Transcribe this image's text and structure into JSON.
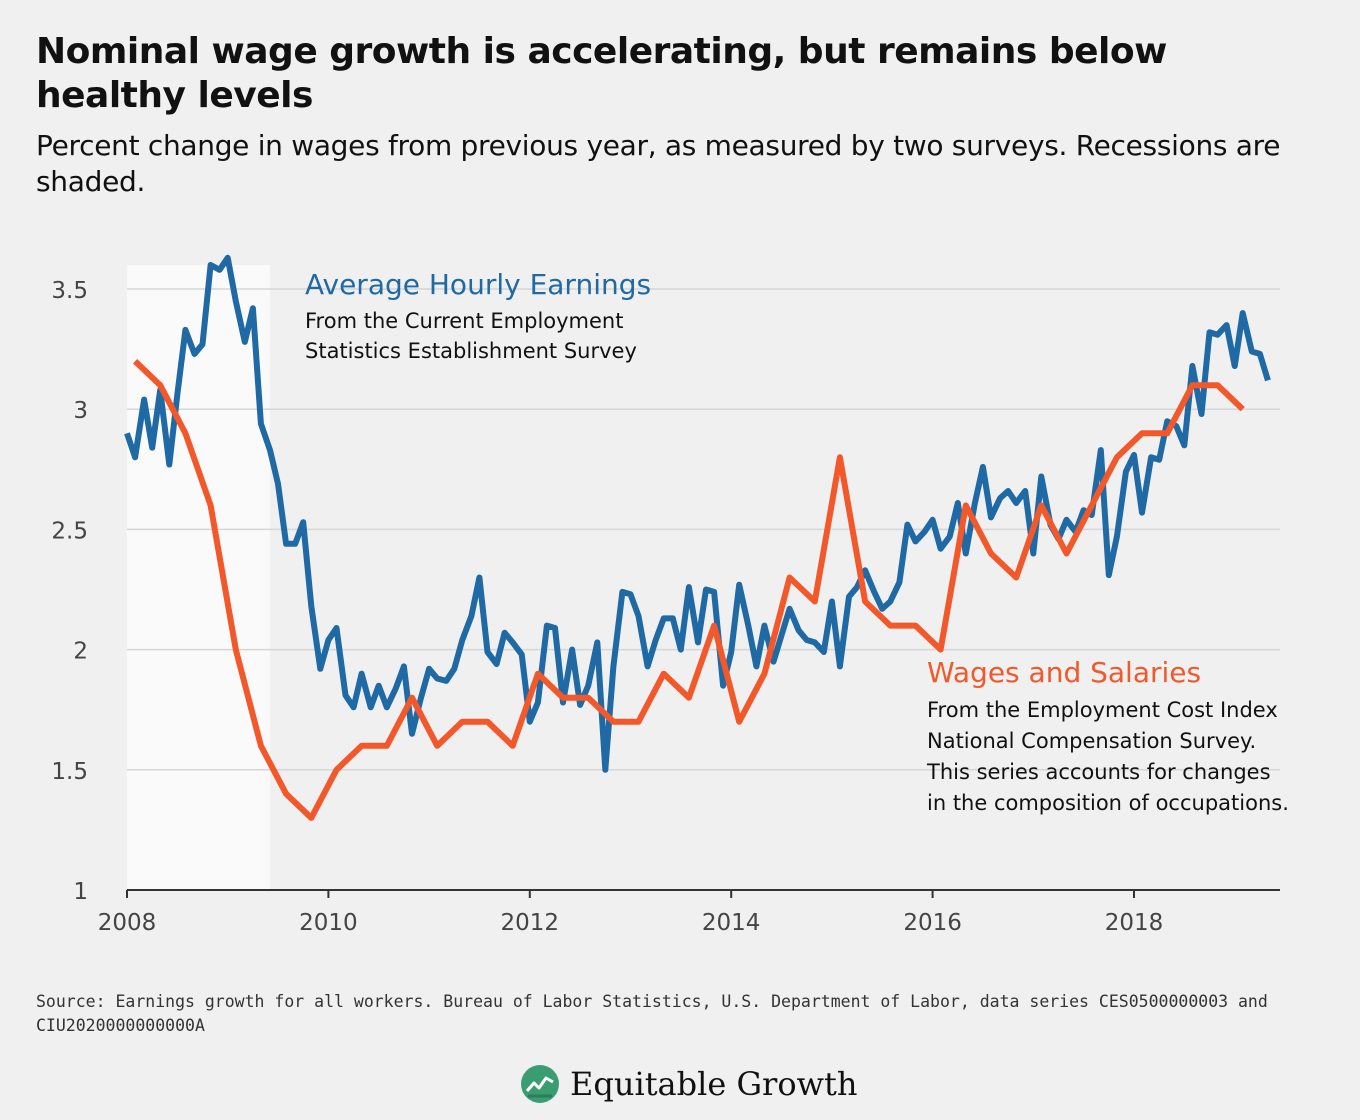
{
  "header": {
    "title": "Nominal wage growth is accelerating, but remains below healthy levels",
    "subtitle": "Percent change in wages from previous year, as measured by two surveys. Recessions are shaded."
  },
  "footer": {
    "source": "Source: Earnings growth for all workers. Bureau of Labor Statistics, U.S. Department of Labor, data series CES0500000003 and CIU2020000000000A",
    "brand": "Equitable Growth",
    "brand_icon": "chart-leaf-icon"
  },
  "colors": {
    "ahe": "#1f6aa5",
    "wages": "#f2582a",
    "grid": "#d6d6d6",
    "axis": "#333333",
    "shade": "#fafafa",
    "brand_green": "#3a9d72"
  },
  "chart_data": {
    "type": "line",
    "x_axis": {
      "ticks": [
        2008,
        2010,
        2012,
        2014,
        2016,
        2018
      ],
      "range": [
        2008,
        2019.45
      ]
    },
    "y_axis": {
      "ticks": [
        "1",
        "1.5",
        "2",
        "2.5",
        "3",
        "3.5"
      ],
      "range": [
        1,
        3.6
      ]
    },
    "grid": true,
    "recession_shading": [
      [
        2008.0,
        2009.42
      ]
    ],
    "series": [
      {
        "name": "Average Hourly Earnings",
        "annotation_title": "Average Hourly Earnings",
        "annotation_lines": [
          "From the Current Employment",
          "Statistics Establishment Survey"
        ],
        "points": [
          [
            2008.0,
            2.9
          ],
          [
            2008.08,
            2.8
          ],
          [
            2008.17,
            3.04
          ],
          [
            2008.25,
            2.84
          ],
          [
            2008.33,
            3.08
          ],
          [
            2008.42,
            2.77
          ],
          [
            2008.5,
            3.06
          ],
          [
            2008.58,
            3.33
          ],
          [
            2008.67,
            3.23
          ],
          [
            2008.75,
            3.27
          ],
          [
            2008.83,
            3.6
          ],
          [
            2008.92,
            3.58
          ],
          [
            2009.0,
            3.63
          ],
          [
            2009.08,
            3.45
          ],
          [
            2009.17,
            3.28
          ],
          [
            2009.25,
            3.42
          ],
          [
            2009.33,
            2.94
          ],
          [
            2009.42,
            2.83
          ],
          [
            2009.5,
            2.69
          ],
          [
            2009.58,
            2.44
          ],
          [
            2009.67,
            2.44
          ],
          [
            2009.75,
            2.53
          ],
          [
            2009.83,
            2.18
          ],
          [
            2009.92,
            1.92
          ],
          [
            2010.0,
            2.04
          ],
          [
            2010.08,
            2.09
          ],
          [
            2010.17,
            1.81
          ],
          [
            2010.25,
            1.76
          ],
          [
            2010.33,
            1.9
          ],
          [
            2010.42,
            1.76
          ],
          [
            2010.5,
            1.85
          ],
          [
            2010.58,
            1.76
          ],
          [
            2010.67,
            1.84
          ],
          [
            2010.75,
            1.93
          ],
          [
            2010.83,
            1.65
          ],
          [
            2010.92,
            1.8
          ],
          [
            2011.0,
            1.92
          ],
          [
            2011.08,
            1.88
          ],
          [
            2011.17,
            1.87
          ],
          [
            2011.25,
            1.92
          ],
          [
            2011.33,
            2.04
          ],
          [
            2011.42,
            2.14
          ],
          [
            2011.5,
            2.3
          ],
          [
            2011.58,
            1.99
          ],
          [
            2011.67,
            1.94
          ],
          [
            2011.75,
            2.07
          ],
          [
            2011.83,
            2.03
          ],
          [
            2011.92,
            1.98
          ],
          [
            2012.0,
            1.7
          ],
          [
            2012.08,
            1.78
          ],
          [
            2012.17,
            2.1
          ],
          [
            2012.25,
            2.09
          ],
          [
            2012.33,
            1.78
          ],
          [
            2012.42,
            2.0
          ],
          [
            2012.5,
            1.77
          ],
          [
            2012.58,
            1.85
          ],
          [
            2012.67,
            2.03
          ],
          [
            2012.75,
            1.5
          ],
          [
            2012.83,
            1.93
          ],
          [
            2012.92,
            2.24
          ],
          [
            2013.0,
            2.23
          ],
          [
            2013.08,
            2.14
          ],
          [
            2013.17,
            1.93
          ],
          [
            2013.25,
            2.04
          ],
          [
            2013.33,
            2.13
          ],
          [
            2013.42,
            2.13
          ],
          [
            2013.5,
            2.0
          ],
          [
            2013.58,
            2.26
          ],
          [
            2013.67,
            2.03
          ],
          [
            2013.75,
            2.25
          ],
          [
            2013.83,
            2.24
          ],
          [
            2013.92,
            1.85
          ],
          [
            2014.0,
            1.99
          ],
          [
            2014.08,
            2.27
          ],
          [
            2014.17,
            2.1
          ],
          [
            2014.25,
            1.93
          ],
          [
            2014.33,
            2.1
          ],
          [
            2014.42,
            1.95
          ],
          [
            2014.5,
            2.06
          ],
          [
            2014.58,
            2.17
          ],
          [
            2014.67,
            2.08
          ],
          [
            2014.75,
            2.04
          ],
          [
            2014.83,
            2.03
          ],
          [
            2014.92,
            1.99
          ],
          [
            2015.0,
            2.2
          ],
          [
            2015.08,
            1.93
          ],
          [
            2015.17,
            2.22
          ],
          [
            2015.25,
            2.26
          ],
          [
            2015.33,
            2.33
          ],
          [
            2015.42,
            2.24
          ],
          [
            2015.5,
            2.17
          ],
          [
            2015.58,
            2.2
          ],
          [
            2015.67,
            2.28
          ],
          [
            2015.75,
            2.52
          ],
          [
            2015.83,
            2.45
          ],
          [
            2015.92,
            2.49
          ],
          [
            2016.0,
            2.54
          ],
          [
            2016.08,
            2.42
          ],
          [
            2016.17,
            2.47
          ],
          [
            2016.25,
            2.61
          ],
          [
            2016.33,
            2.4
          ],
          [
            2016.42,
            2.61
          ],
          [
            2016.5,
            2.76
          ],
          [
            2016.58,
            2.55
          ],
          [
            2016.67,
            2.63
          ],
          [
            2016.75,
            2.66
          ],
          [
            2016.83,
            2.61
          ],
          [
            2016.92,
            2.66
          ],
          [
            2017.0,
            2.4
          ],
          [
            2017.08,
            2.72
          ],
          [
            2017.17,
            2.52
          ],
          [
            2017.25,
            2.46
          ],
          [
            2017.33,
            2.54
          ],
          [
            2017.42,
            2.49
          ],
          [
            2017.5,
            2.58
          ],
          [
            2017.58,
            2.56
          ],
          [
            2017.67,
            2.83
          ],
          [
            2017.75,
            2.31
          ],
          [
            2017.83,
            2.47
          ],
          [
            2017.92,
            2.74
          ],
          [
            2018.0,
            2.81
          ],
          [
            2018.08,
            2.57
          ],
          [
            2018.17,
            2.8
          ],
          [
            2018.25,
            2.79
          ],
          [
            2018.33,
            2.95
          ],
          [
            2018.42,
            2.93
          ],
          [
            2018.5,
            2.85
          ],
          [
            2018.58,
            3.18
          ],
          [
            2018.67,
            2.98
          ],
          [
            2018.75,
            3.32
          ],
          [
            2018.83,
            3.31
          ],
          [
            2018.92,
            3.35
          ],
          [
            2019.0,
            3.18
          ],
          [
            2019.08,
            3.4
          ],
          [
            2019.17,
            3.24
          ],
          [
            2019.25,
            3.23
          ],
          [
            2019.33,
            3.12
          ]
        ]
      },
      {
        "name": "Wages and Salaries",
        "annotation_title": "Wages and Salaries",
        "annotation_lines": [
          "From the Employment Cost Index",
          "National Compensation Survey.",
          "This series accounts for changes",
          "in the composition of occupations."
        ],
        "points": [
          [
            2008.08,
            3.2
          ],
          [
            2008.33,
            3.1
          ],
          [
            2008.58,
            2.9
          ],
          [
            2008.83,
            2.6
          ],
          [
            2009.08,
            2.0
          ],
          [
            2009.33,
            1.6
          ],
          [
            2009.58,
            1.4
          ],
          [
            2009.83,
            1.3
          ],
          [
            2010.08,
            1.5
          ],
          [
            2010.33,
            1.6
          ],
          [
            2010.58,
            1.6
          ],
          [
            2010.83,
            1.8
          ],
          [
            2011.08,
            1.6
          ],
          [
            2011.33,
            1.7
          ],
          [
            2011.58,
            1.7
          ],
          [
            2011.83,
            1.6
          ],
          [
            2012.08,
            1.9
          ],
          [
            2012.33,
            1.8
          ],
          [
            2012.58,
            1.8
          ],
          [
            2012.83,
            1.7
          ],
          [
            2013.08,
            1.7
          ],
          [
            2013.33,
            1.9
          ],
          [
            2013.58,
            1.8
          ],
          [
            2013.83,
            2.1
          ],
          [
            2014.08,
            1.7
          ],
          [
            2014.33,
            1.9
          ],
          [
            2014.58,
            2.3
          ],
          [
            2014.83,
            2.2
          ],
          [
            2015.08,
            2.8
          ],
          [
            2015.33,
            2.2
          ],
          [
            2015.58,
            2.1
          ],
          [
            2015.83,
            2.1
          ],
          [
            2016.08,
            2.0
          ],
          [
            2016.33,
            2.6
          ],
          [
            2016.58,
            2.4
          ],
          [
            2016.83,
            2.3
          ],
          [
            2017.08,
            2.6
          ],
          [
            2017.33,
            2.4
          ],
          [
            2017.58,
            2.6
          ],
          [
            2017.83,
            2.8
          ],
          [
            2018.08,
            2.9
          ],
          [
            2018.33,
            2.9
          ],
          [
            2018.58,
            3.1
          ],
          [
            2018.83,
            3.1
          ],
          [
            2019.08,
            3.0
          ]
        ]
      }
    ]
  }
}
